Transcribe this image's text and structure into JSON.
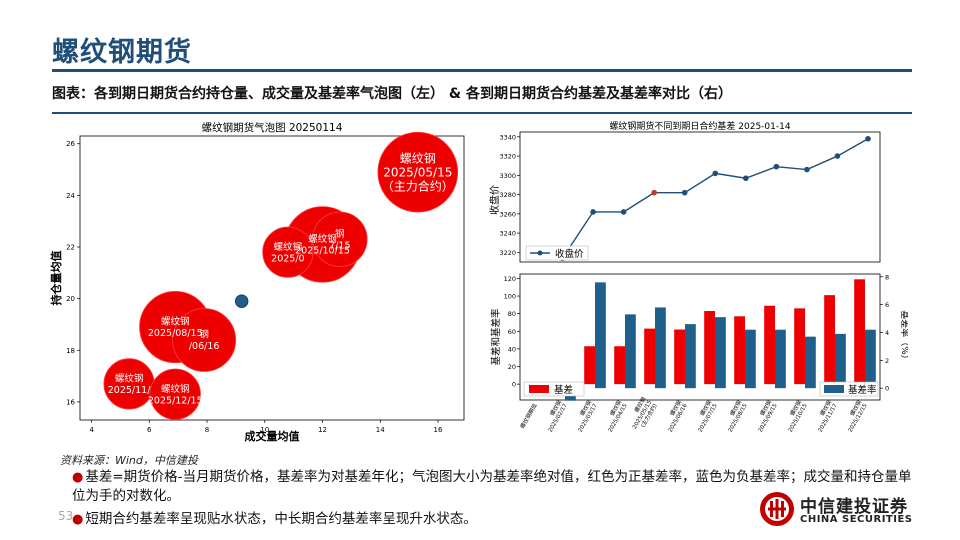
{
  "header": {
    "title": "螺纹钢期货",
    "subtitle": "图表：各到期日期货合约持仓量、成交量及基差率气泡图（左） & 各到期日期货合约基差及基差率对比（右）"
  },
  "colors": {
    "brand": "#1f4e79",
    "positive": "#ee0000",
    "negative": "#1f5f8b",
    "line": "#1f4e79"
  },
  "chart_data": [
    {
      "type": "scatter",
      "title": "螺纹钢期货气泡图 20250114",
      "xlabel": "成交量均值",
      "ylabel": "持仓量均值",
      "xlim": [
        3.6,
        16.9
      ],
      "ylim": [
        15.3,
        26.3
      ],
      "xticks": [
        4,
        6,
        8,
        10,
        12,
        14,
        16
      ],
      "yticks": [
        16,
        18,
        20,
        22,
        24,
        26
      ],
      "points": [
        {
          "x": 15.3,
          "y": 24.9,
          "size": 1.9,
          "sign": "positive",
          "label": [
            "螺纹钢",
            "2025/05/15",
            "（主力合约）"
          ]
        },
        {
          "x": 12.0,
          "y": 22.1,
          "size": 1.8,
          "sign": "positive",
          "label": [
            "螺纹钢",
            "2025/10/15"
          ]
        },
        {
          "x": 12.6,
          "y": 22.3,
          "size": 1.3,
          "sign": "positive",
          "label": [
            "钢",
            "7/15"
          ]
        },
        {
          "x": 10.8,
          "y": 21.8,
          "size": 1.2,
          "sign": "positive",
          "label": [
            "螺纹钢",
            "2025/0"
          ]
        },
        {
          "x": 9.2,
          "y": 19.9,
          "size": 0.3,
          "sign": "negative",
          "label": []
        },
        {
          "x": 7.9,
          "y": 18.4,
          "size": 1.5,
          "sign": "positive",
          "label": [
            "钢",
            "/06/16"
          ]
        },
        {
          "x": 6.9,
          "y": 18.9,
          "size": 1.7,
          "sign": "positive",
          "label": [
            "螺纹钢",
            "2025/08/15"
          ]
        },
        {
          "x": 5.3,
          "y": 16.7,
          "size": 1.2,
          "sign": "positive",
          "label": [
            "螺纹钢",
            "2025/11/"
          ]
        },
        {
          "x": 6.9,
          "y": 16.3,
          "size": 1.2,
          "sign": "positive",
          "label": [
            "螺纹钢",
            "2025/12/15"
          ]
        }
      ]
    },
    {
      "type": "line",
      "title": "螺纹钢期货不同到期日合约基差 2025-01-14",
      "ylabel": "收盘价",
      "ylim": [
        3210,
        3345
      ],
      "yticks": [
        3220,
        3240,
        3260,
        3280,
        3300,
        3320,
        3340
      ],
      "legend": "收盘价",
      "values": [
        3216,
        3214,
        3262,
        3262,
        3282,
        3282,
        3302,
        3297,
        3309,
        3306,
        3320,
        3338
      ],
      "highlight_index": 4
    },
    {
      "type": "bar",
      "ylabel": "基差和基差率",
      "y2label": "基差率（%）",
      "ylim": [
        -18,
        125
      ],
      "yticks": [
        0,
        20,
        40,
        60,
        80,
        100,
        120
      ],
      "y2lim": [
        -0.85,
        8.2
      ],
      "y2ticks": [
        0,
        2,
        4,
        6,
        8
      ],
      "categories": [
        "螺纹钢期现",
        "螺纹钢\n2025/02/17",
        "螺纹钢\n2025/03/17",
        "螺纹钢\n2025/04/15",
        "螺纹钢\n2025/05/15\n(主力合约)",
        "螺纹钢\n2025/06/16",
        "螺纹钢\n2025/07/15",
        "螺纹钢\n2025/08/15",
        "螺纹钢\n2025/09/15",
        "螺纹钢\n2025/10/15",
        "螺纹钢\n2025/11/17",
        "螺纹钢\n2025/12/15"
      ],
      "series": [
        {
          "name": "基差",
          "axis": "left",
          "values": [
            0,
            -13,
            43,
            43,
            63,
            62,
            83,
            77,
            89,
            86,
            101,
            119
          ]
        },
        {
          "name": "基差率",
          "axis": "right",
          "values": [
            0,
            -0.9,
            7.6,
            5.3,
            5.8,
            4.6,
            5.1,
            4.2,
            4.2,
            3.7,
            3.9,
            4.2
          ]
        }
      ]
    }
  ],
  "footer": {
    "source": "资料来源：Wind，中信建投",
    "note1": "基差=期货价格-当月期货价格，基差率为对基差年化；气泡图大小为基差率绝对值，红色为正基差率，蓝色为负基差率；成交量和持仓量单位为手的对数化。",
    "note2": "短期合约基差率呈现贴水状态，中长期合约基差率呈现升水状态。",
    "page": "53",
    "logo_cn": "中信建投证券",
    "logo_en": "CHINA SECURITIES"
  }
}
